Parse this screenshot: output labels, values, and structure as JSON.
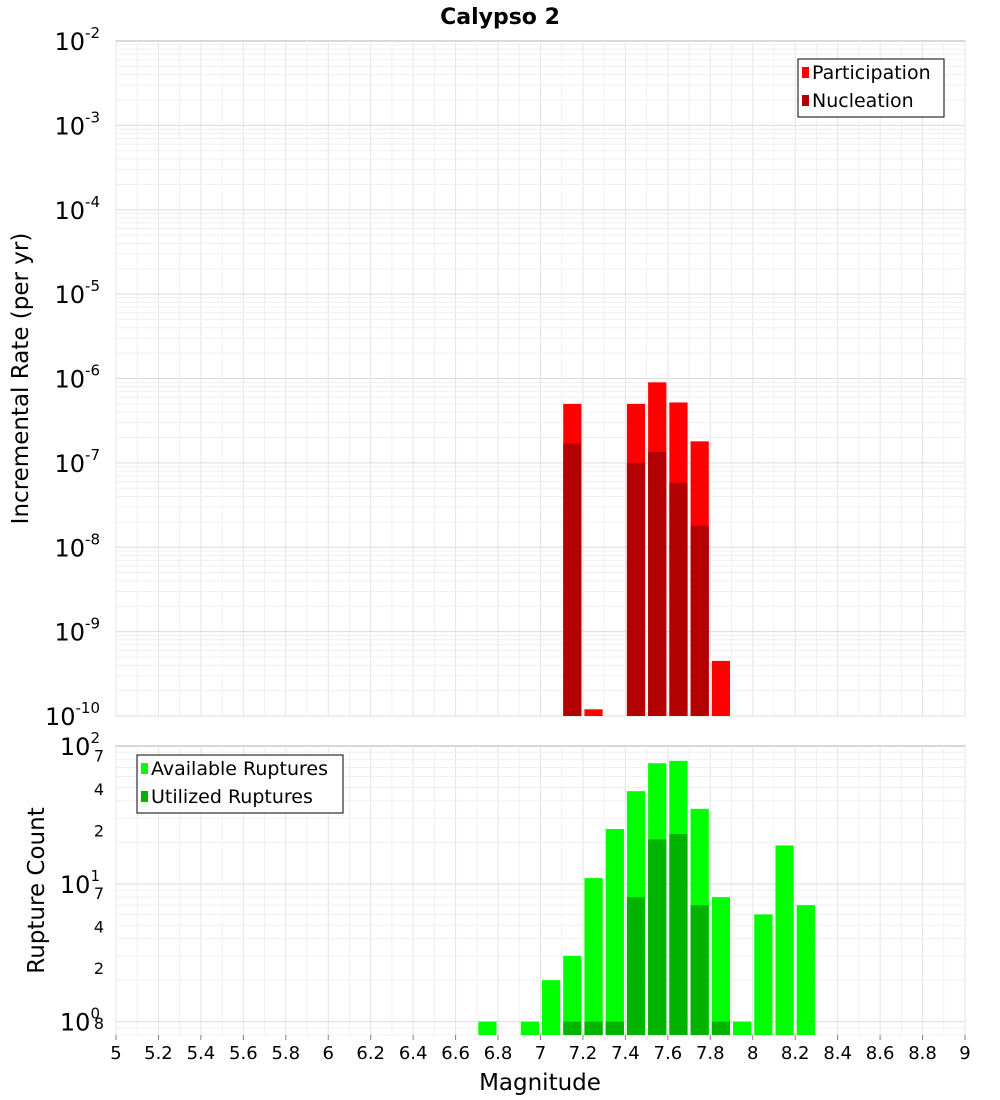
{
  "title": "Calypso 2",
  "chart_data": [
    {
      "type": "bar",
      "name": "incremental-rate-panel",
      "ylabel": "Incremental Rate (per yr)",
      "yscale": "log",
      "ylim": [
        1e-10,
        0.01
      ],
      "x_bin_width": 0.1,
      "major_ticks": [
        {
          "base": "10",
          "exp": "-2",
          "value": 0.01
        },
        {
          "base": "10",
          "exp": "-3",
          "value": 0.001
        },
        {
          "base": "10",
          "exp": "-4",
          "value": 0.0001
        },
        {
          "base": "10",
          "exp": "-5",
          "value": 1e-05
        },
        {
          "base": "10",
          "exp": "-6",
          "value": 1e-06
        },
        {
          "base": "10",
          "exp": "-7",
          "value": 1e-07
        },
        {
          "base": "10",
          "exp": "-8",
          "value": 1e-08
        },
        {
          "base": "10",
          "exp": "-9",
          "value": 1e-09
        },
        {
          "base": "10",
          "exp": "-10",
          "value": 1e-10
        }
      ],
      "legend": {
        "position": "top-right",
        "entries": [
          "Participation",
          "Nucleation"
        ]
      },
      "series": [
        {
          "name": "Participation",
          "color": "#ff0000",
          "x": [
            7.15,
            7.25,
            7.45,
            7.55,
            7.65,
            7.75,
            7.85
          ],
          "values": [
            5e-07,
            1.2e-10,
            5e-07,
            9e-07,
            5.2e-07,
            1.8e-07,
            4.5e-10
          ]
        },
        {
          "name": "Nucleation",
          "color": "#b30000",
          "x": [
            7.15,
            7.45,
            7.55,
            7.65,
            7.75
          ],
          "values": [
            1.7e-07,
            1e-07,
            1.35e-07,
            5.8e-08,
            1.8e-08
          ]
        }
      ]
    },
    {
      "type": "bar",
      "name": "rupture-count-panel",
      "ylabel": "Rupture Count",
      "yscale": "log",
      "ylim": [
        0.8,
        100
      ],
      "x_bin_width": 0.1,
      "major_ticks": [
        {
          "base": "10",
          "exp": "2",
          "value": 100
        },
        {
          "base": "10",
          "exp": "1",
          "value": 10
        },
        {
          "base": "10",
          "exp": "0",
          "value": 1
        }
      ],
      "minor_ticks": [
        {
          "label": "7",
          "value": 70
        },
        {
          "label": "4",
          "value": 40
        },
        {
          "label": "2",
          "value": 20
        },
        {
          "label": "7",
          "value": 7
        },
        {
          "label": "4",
          "value": 4
        },
        {
          "label": "2",
          "value": 2
        },
        {
          "label": "8",
          "value": 0.8
        }
      ],
      "legend": {
        "position": "top-left",
        "entries": [
          "Available Ruptures",
          "Utilized Ruptures"
        ]
      },
      "series": [
        {
          "name": "Available Ruptures",
          "color": "#00ff00",
          "x": [
            6.75,
            6.95,
            7.05,
            7.15,
            7.25,
            7.35,
            7.45,
            7.55,
            7.65,
            7.75,
            7.85,
            7.95,
            8.05,
            8.15,
            8.25
          ],
          "values": [
            1,
            1,
            2,
            3,
            11,
            25,
            47,
            75,
            78,
            35,
            8,
            1,
            6,
            19,
            7
          ]
        },
        {
          "name": "Utilized Ruptures",
          "color": "#00b300",
          "x": [
            7.15,
            7.25,
            7.35,
            7.45,
            7.55,
            7.65,
            7.75,
            7.85
          ],
          "values": [
            1,
            1,
            1,
            8,
            21,
            23,
            7,
            1
          ]
        }
      ]
    }
  ],
  "x_axis": {
    "label": "Magnitude",
    "xlim": [
      5,
      9
    ],
    "ticks": [
      "5",
      "5.2",
      "5.4",
      "5.6",
      "5.8",
      "6",
      "6.2",
      "6.4",
      "6.6",
      "6.8",
      "7",
      "7.2",
      "7.4",
      "7.6",
      "7.8",
      "8",
      "8.2",
      "8.4",
      "8.6",
      "8.8",
      "9"
    ]
  }
}
